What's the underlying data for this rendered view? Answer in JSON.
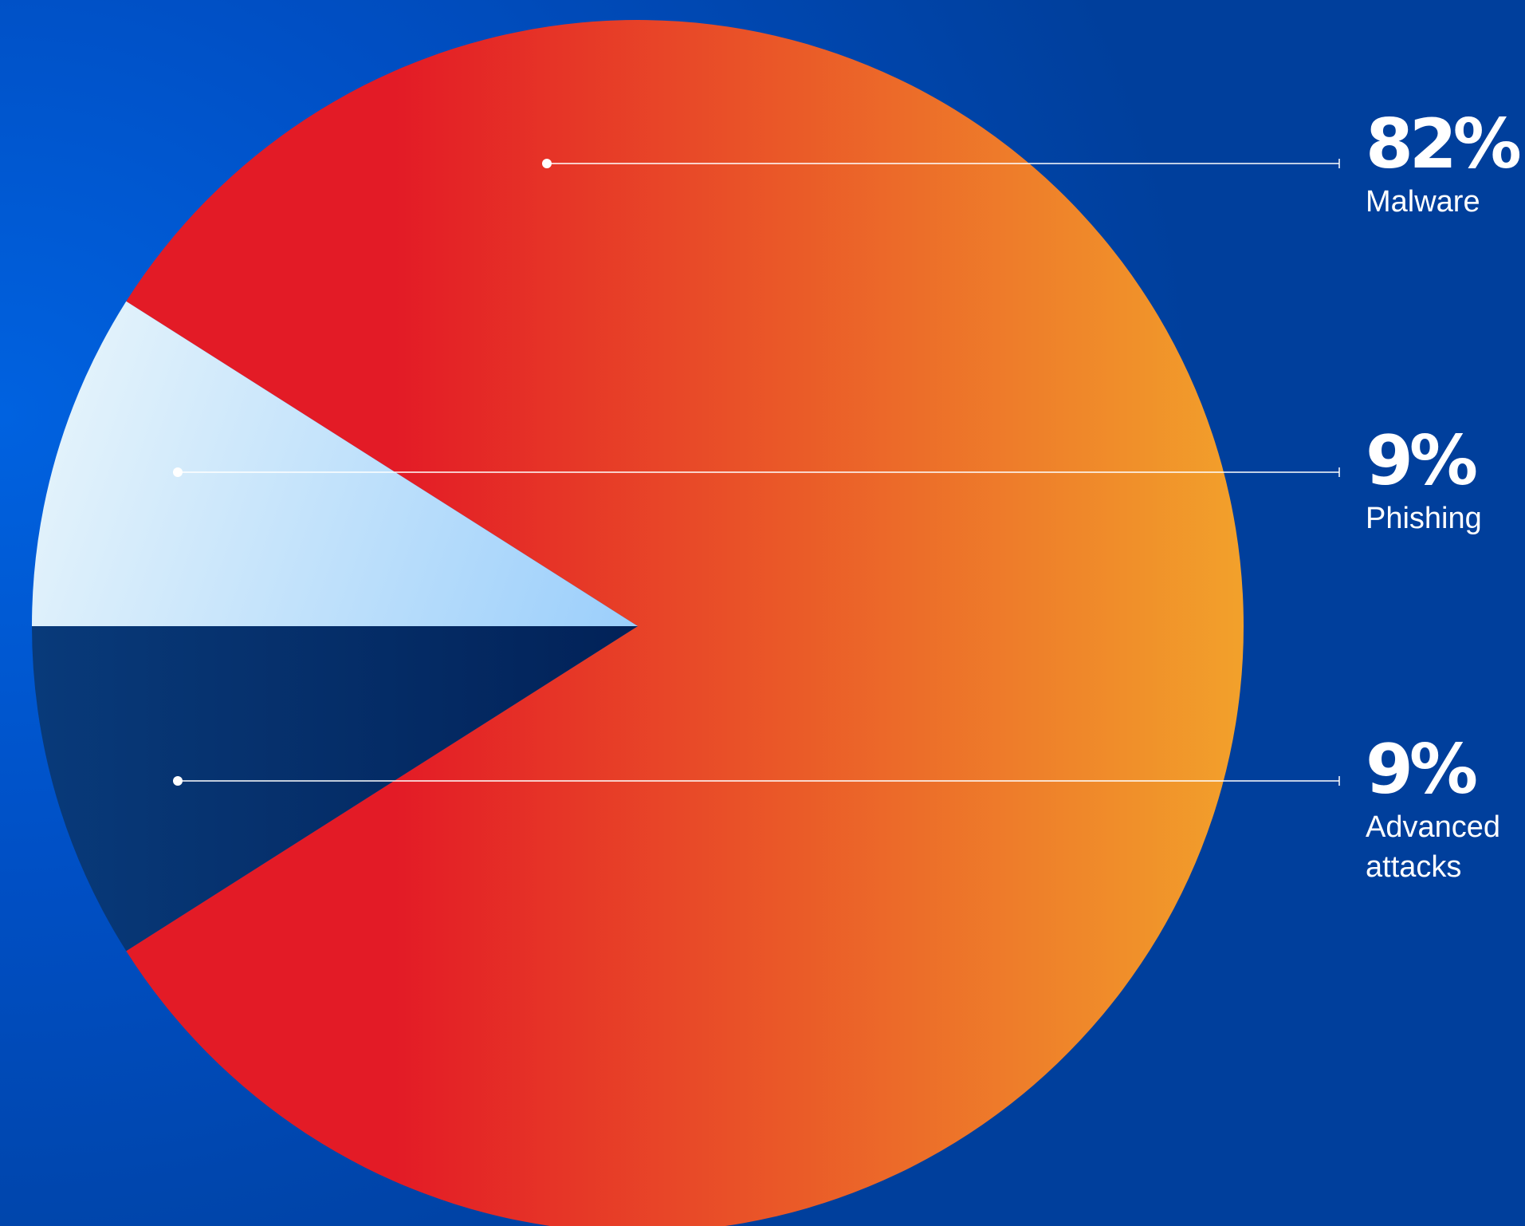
{
  "chart_data": {
    "type": "pie",
    "slices": [
      {
        "label": "Malware",
        "value": 82,
        "value_label": "82%",
        "color_start": "#e31b26",
        "color_end": "#f2a12b"
      },
      {
        "label": "Phishing",
        "value": 9,
        "value_label": "9%",
        "color_start": "#e6f4fb",
        "color_end": "#9ccffb"
      },
      {
        "label": "Advanced attacks",
        "value": 9,
        "value_label": "9%",
        "color_start": "#083a7a",
        "color_end": "#022258"
      }
    ],
    "legend_placement": "right"
  },
  "colors": {
    "background": "#0052cc",
    "leader_line": "#ffffff"
  }
}
